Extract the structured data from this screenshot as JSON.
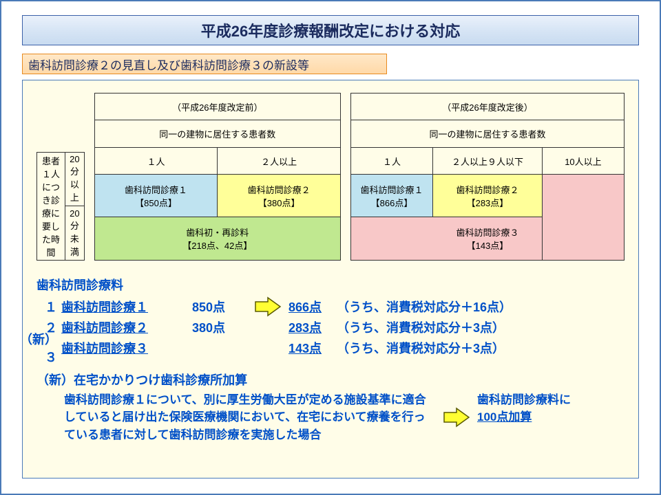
{
  "colors": {
    "border_main": "#4a7ab8",
    "title_gradient_top": "#eaf1fb",
    "title_gradient_bottom": "#c8dbf0",
    "title_border": "#3a60a8",
    "title_text": "#1b2b5e",
    "subtitle_gradient_top": "#ffe8c8",
    "subtitle_gradient_bottom": "#ffd9a8",
    "subtitle_border": "#e88a1f",
    "content_bg": "#fffde8",
    "cell_blue": "#bfe3f0",
    "cell_yellow": "#ffff99",
    "cell_green": "#c0e890",
    "cell_pink": "#f8c8c8",
    "text_blue": "#0050c8",
    "arrow_fill": "#ffff33",
    "arrow_stroke": "#5a5a00"
  },
  "title": "平成26年度診療報酬改定における対応",
  "subtitle": "歯科訪問診療２の見直し及び歯科訪問診療３の新設等",
  "rowlabels": {
    "r1": "患者１人につき診療に要した時間",
    "t1": "20分以上",
    "t2": "20分未満"
  },
  "before": {
    "header": "（平成26年度改定前）",
    "subheader": "同一の建物に居住する患者数",
    "cols": [
      "１人",
      "２人以上"
    ],
    "cells": {
      "a": "歯科訪問診療１\n【850点】",
      "b": "歯科訪問診療２\n【380点】",
      "c": "歯科初・再診料\n【218点、42点】"
    }
  },
  "after": {
    "header": "（平成26年度改定後）",
    "subheader": "同一の建物に居住する患者数",
    "cols": [
      "１人",
      "２人以上９人以下",
      "10人以上"
    ],
    "cells": {
      "a": "歯科訪問診療１\n【866点】",
      "b": "歯科訪問診療２\n【283点】",
      "c": "歯科訪問診療３\n【143点】"
    }
  },
  "fees": {
    "heading": "歯科訪問診療料",
    "lines": [
      {
        "num": "１",
        "name": "歯科訪問診療１",
        "pts": "850点",
        "newpts": "866点",
        "note": "（うち、消費税対応分＋16点）"
      },
      {
        "num": "２",
        "name": "歯科訪問診療２",
        "pts": "380点",
        "newpts": "283点",
        "note": "（うち、消費税対応分＋3点）"
      },
      {
        "num": "（新）３",
        "name": "歯科訪問診療３",
        "pts": "",
        "newpts": "143点",
        "note": "（うち、消費税対応分＋3点）"
      }
    ]
  },
  "bonus": {
    "heading": "（新）在宅かかりつけ歯科診療所加算",
    "text": "歯科訪問診療１について、別に厚生労働大臣が定める施設基準に適合していると届け出た保険医療機関において、在宅において療養を行っている患者に対して歯科訪問診療を実施した場合",
    "right1": "歯科訪問診療料に",
    "right2": "100点加算"
  }
}
